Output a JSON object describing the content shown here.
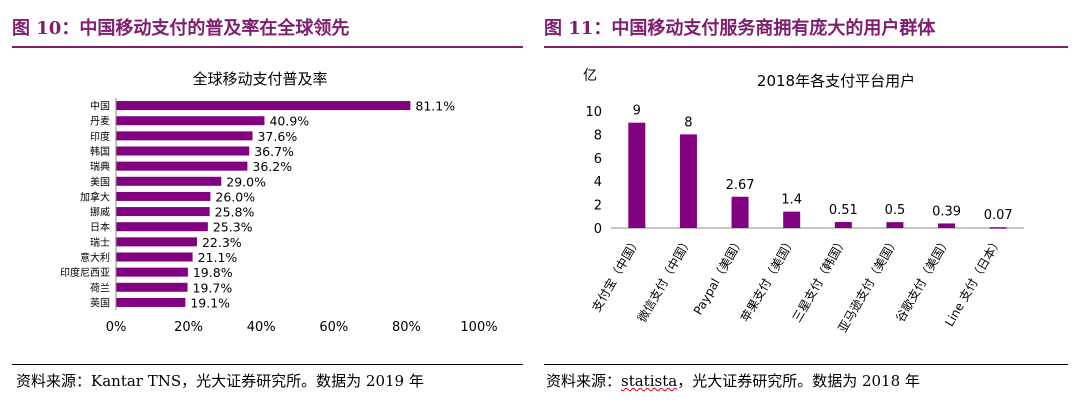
{
  "left": {
    "figure_title": "图 10：中国移动支付的普及率在全球领先",
    "source_prefix": "资料来源：",
    "source_brand": "Kantar TNS",
    "source_suffix": "，光大证券研究所。数据为 2019 年"
  },
  "right": {
    "figure_title": "图 11：中国移动支付服务商拥有庞大的用户群体",
    "source_prefix": "资料来源：",
    "source_brand": "statista",
    "source_suffix": "，光大证券研究所。数据为 2018 年"
  },
  "colors": {
    "accent": "#7f1d6e",
    "bar": "#800080"
  },
  "chart_data": [
    {
      "type": "bar",
      "orientation": "horizontal",
      "title": "全球移动支付普及率",
      "categories": [
        "中国",
        "丹麦",
        "印度",
        "韩国",
        "瑞典",
        "美国",
        "加拿大",
        "挪威",
        "日本",
        "瑞士",
        "意大利",
        "印度尼西亚",
        "荷兰",
        "英国"
      ],
      "values": [
        81.1,
        40.9,
        37.6,
        36.7,
        36.2,
        29.0,
        26.0,
        25.8,
        25.3,
        22.3,
        21.1,
        19.8,
        19.7,
        19.1
      ],
      "value_labels": [
        "81.1%",
        "40.9%",
        "37.6%",
        "36.7%",
        "36.2%",
        "29.0%",
        "26.0%",
        "25.8%",
        "25.3%",
        "22.3%",
        "21.1%",
        "19.8%",
        "19.7%",
        "19.1%"
      ],
      "xlim": [
        0,
        100
      ],
      "xticks": [
        "0%",
        "20%",
        "40%",
        "60%",
        "80%",
        "100%"
      ],
      "grid": false
    },
    {
      "type": "bar",
      "title": "2018年各支付平台用户",
      "ylabel": "亿",
      "categories": [
        "支付宝（中国）",
        "微信支付（中国）",
        "Paypal（美国）",
        "苹果支付（美国）",
        "三星支付（韩国）",
        "亚马逊支付（美国）",
        "谷歌支付（美国）",
        "Line 支付（日本）"
      ],
      "values": [
        9,
        8,
        2.67,
        1.4,
        0.51,
        0.5,
        0.39,
        0.07
      ],
      "value_labels": [
        "9",
        "8",
        "2.67",
        "1.4",
        "0.51",
        "0.5",
        "0.39",
        "0.07"
      ],
      "ylim": [
        0,
        10
      ],
      "yticks": [
        "0",
        "2",
        "4",
        "6",
        "8",
        "10"
      ],
      "grid": false
    }
  ]
}
